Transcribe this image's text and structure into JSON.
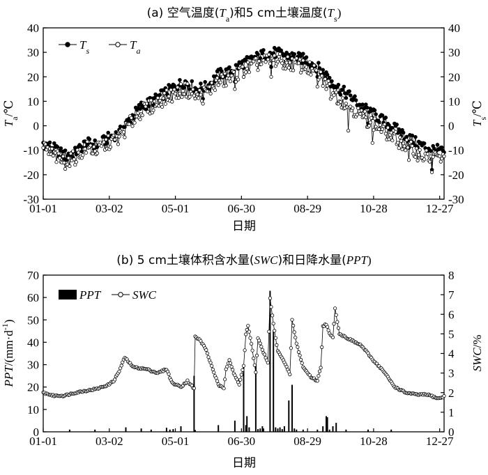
{
  "chart_data": [
    {
      "type": "line",
      "title": "(a)  空气温度(Ta)和5 cm土壤温度(Ts)",
      "title_parts": [
        "(a)  空气温度(",
        "T",
        "a",
        ")和5 cm土壤温度(",
        "T",
        "s",
        ")"
      ],
      "xlabel": "日期",
      "ylabel_left": "Ta/℃",
      "ylabel_left_parts": [
        "T",
        "a",
        "/℃"
      ],
      "ylabel_right": "Ts/℃",
      "ylabel_right_parts": [
        "T",
        "s",
        "/℃"
      ],
      "xlim": [
        1,
        365
      ],
      "ylim": [
        -30,
        40
      ],
      "yticks": [
        -30,
        -20,
        -10,
        0,
        10,
        20,
        30,
        40
      ],
      "xticks": [
        {
          "day": 1,
          "label": "01-01"
        },
        {
          "day": 61,
          "label": "03-02"
        },
        {
          "day": 121,
          "label": "05-01"
        },
        {
          "day": 181,
          "label": "06-30"
        },
        {
          "day": 241,
          "label": "08-29"
        },
        {
          "day": 301,
          "label": "10-28"
        },
        {
          "day": 361,
          "label": "12-27"
        }
      ],
      "legend": {
        "position": "top-left",
        "entries": [
          {
            "key": "Ts",
            "main": "T",
            "sub": "s"
          },
          {
            "key": "Ta",
            "main": "T",
            "sub": "a"
          }
        ]
      },
      "series": [
        {
          "key": "Ts",
          "name": "Ts",
          "marker": "filled-circle",
          "color": "#000000",
          "anchors": [
            [
              1,
              -7
            ],
            [
              10,
              -9
            ],
            [
              20,
              -12
            ],
            [
              30,
              -11
            ],
            [
              40,
              -7
            ],
            [
              50,
              -8
            ],
            [
              60,
              -5
            ],
            [
              70,
              -3
            ],
            [
              80,
              3
            ],
            [
              90,
              8
            ],
            [
              100,
              10
            ],
            [
              110,
              13
            ],
            [
              120,
              16
            ],
            [
              130,
              18
            ],
            [
              140,
              15
            ],
            [
              150,
              16
            ],
            [
              160,
              21
            ],
            [
              170,
              22
            ],
            [
              180,
              25
            ],
            [
              190,
              27
            ],
            [
              200,
              29
            ],
            [
              210,
              30
            ],
            [
              220,
              29
            ],
            [
              230,
              28
            ],
            [
              240,
              27
            ],
            [
              250,
              24
            ],
            [
              260,
              20
            ],
            [
              270,
              15
            ],
            [
              280,
              12
            ],
            [
              290,
              8
            ],
            [
              300,
              5
            ],
            [
              310,
              2
            ],
            [
              320,
              -1
            ],
            [
              330,
              -4
            ],
            [
              340,
              -7
            ],
            [
              350,
              -9
            ],
            [
              360,
              -10
            ],
            [
              365,
              -11
            ]
          ],
          "dips": [
            [
              22,
              -14
            ],
            [
              37,
              -9
            ],
            [
              146,
              11
            ],
            [
              175,
              18
            ],
            [
              208,
              24
            ],
            [
              250,
              20
            ],
            [
              262,
              16
            ],
            [
              296,
              1
            ],
            [
              333,
              -9
            ],
            [
              354,
              -18
            ]
          ]
        },
        {
          "key": "Ta",
          "name": "Ta",
          "marker": "open-circle",
          "color": "#000000",
          "anchors": [
            [
              1,
              -9
            ],
            [
              10,
              -12
            ],
            [
              20,
              -15
            ],
            [
              30,
              -13
            ],
            [
              40,
              -9
            ],
            [
              50,
              -10
            ],
            [
              60,
              -7
            ],
            [
              70,
              -5
            ],
            [
              80,
              1
            ],
            [
              90,
              6
            ],
            [
              100,
              8
            ],
            [
              110,
              11
            ],
            [
              120,
              13
            ],
            [
              130,
              15
            ],
            [
              140,
              12
            ],
            [
              150,
              14
            ],
            [
              160,
              18
            ],
            [
              170,
              19
            ],
            [
              180,
              22
            ],
            [
              190,
              24
            ],
            [
              200,
              26
            ],
            [
              210,
              27
            ],
            [
              220,
              26
            ],
            [
              230,
              25
            ],
            [
              240,
              24
            ],
            [
              250,
              21
            ],
            [
              260,
              16
            ],
            [
              270,
              11
            ],
            [
              280,
              8
            ],
            [
              290,
              4
            ],
            [
              300,
              1
            ],
            [
              310,
              -2
            ],
            [
              320,
              -5
            ],
            [
              330,
              -8
            ],
            [
              340,
              -11
            ],
            [
              350,
              -13
            ],
            [
              360,
              -13
            ],
            [
              365,
              -14
            ]
          ],
          "dips": [
            [
              22,
              -16
            ],
            [
              37,
              -12
            ],
            [
              146,
              9
            ],
            [
              175,
              15
            ],
            [
              208,
              20
            ],
            [
              250,
              16
            ],
            [
              262,
              11
            ],
            [
              278,
              -2
            ],
            [
              300,
              -7
            ],
            [
              318,
              -6
            ],
            [
              333,
              -14
            ],
            [
              354,
              -19
            ]
          ]
        }
      ]
    },
    {
      "type": "bar+line",
      "title": "(b)  5 cm土壤体积含水量(SWC)和日降水量(PPT)",
      "title_parts": [
        "(b)  5 cm土壤体积含水量(",
        "SWC",
        ")和日降水量(",
        "PPT",
        ")"
      ],
      "xlabel": "日期",
      "ylabel_left": "PPT/(mm·d-1)",
      "ylabel_left_parts": [
        "PPT",
        "/(mm·d",
        "-1",
        ")"
      ],
      "ylabel_right": "SWC/%",
      "ylabel_right_parts": [
        "SWC",
        "/%"
      ],
      "xlim": [
        1,
        365
      ],
      "ylim_left": [
        0,
        70
      ],
      "ylim_right": [
        0,
        8
      ],
      "yticks_left": [
        0,
        10,
        20,
        30,
        40,
        50,
        60,
        70
      ],
      "yticks_right": [
        0,
        1,
        2,
        3,
        4,
        5,
        6,
        7,
        8
      ],
      "xticks": [
        {
          "day": 1,
          "label": "01-01"
        },
        {
          "day": 61,
          "label": "03-02"
        },
        {
          "day": 121,
          "label": "05-01"
        },
        {
          "day": 181,
          "label": "06-30"
        },
        {
          "day": 241,
          "label": "08-29"
        },
        {
          "day": 301,
          "label": "10-28"
        },
        {
          "day": 361,
          "label": "12-27"
        }
      ],
      "legend": {
        "position": "top-left",
        "entries": [
          {
            "key": "PPT",
            "main": "PPT",
            "sub": ""
          },
          {
            "key": "SWC",
            "main": "SWC",
            "sub": ""
          }
        ]
      },
      "series": [
        {
          "key": "PPT",
          "name": "PPT",
          "type": "bar",
          "axis": "left",
          "color": "#000000",
          "days": [
            25,
            48,
            76,
            90,
            99,
            113,
            116,
            119,
            126,
            138,
            139,
            160,
            175,
            183,
            185,
            186,
            188,
            194,
            196,
            198,
            200,
            201,
            207,
            210,
            212,
            214,
            216,
            218,
            220,
            224,
            227,
            229,
            231,
            237,
            250,
            255,
            258,
            259,
            261,
            264,
            267,
            276,
            296,
            317
          ],
          "values": [
            1.0,
            1.0,
            2.0,
            1.5,
            1.0,
            1.8,
            1.0,
            1.2,
            2.5,
            25.0,
            0.8,
            3.0,
            5.0,
            30.0,
            3.0,
            7.0,
            2.0,
            30.0,
            1.2,
            1.5,
            2.5,
            1.5,
            63.0,
            45.0,
            2.0,
            1.5,
            2.0,
            1.2,
            2.5,
            14.0,
            21.0,
            1.5,
            1.0,
            1.0,
            1.0,
            2.5,
            7.0,
            6.5,
            1.0,
            2.5,
            4.0,
            1.0,
            1.0,
            1.0
          ]
        },
        {
          "key": "SWC",
          "name": "SWC",
          "type": "line",
          "axis": "right",
          "marker": "open-circle",
          "color": "#000000",
          "anchors": [
            [
              1,
              2.0
            ],
            [
              10,
              1.85
            ],
            [
              20,
              1.85
            ],
            [
              30,
              2.0
            ],
            [
              50,
              2.2
            ],
            [
              60,
              2.4
            ],
            [
              65,
              2.6
            ],
            [
              70,
              3.1
            ],
            [
              75,
              3.8
            ],
            [
              78,
              3.6
            ],
            [
              83,
              3.3
            ],
            [
              95,
              3.2
            ],
            [
              105,
              3.0
            ],
            [
              113,
              3.2
            ],
            [
              118,
              2.5
            ],
            [
              126,
              2.3
            ],
            [
              132,
              2.6
            ],
            [
              138,
              2.2
            ],
            [
              139,
              4.85
            ],
            [
              143,
              4.7
            ],
            [
              148,
              4.3
            ],
            [
              155,
              3.2
            ],
            [
              160,
              2.4
            ],
            [
              165,
              2.2
            ],
            [
              167,
              3.2
            ],
            [
              170,
              3.7
            ],
            [
              174,
              3.0
            ],
            [
              179,
              2.4
            ],
            [
              183,
              3.4
            ],
            [
              185,
              5.0
            ],
            [
              187,
              5.4
            ],
            [
              190,
              4.5
            ],
            [
              194,
              3.0
            ],
            [
              196,
              4.8
            ],
            [
              200,
              4.2
            ],
            [
              205,
              3.5
            ],
            [
              207,
              6.8
            ],
            [
              210,
              5.5
            ],
            [
              214,
              4.1
            ],
            [
              218,
              3.8
            ],
            [
              222,
              3.3
            ],
            [
              225,
              2.9
            ],
            [
              227,
              5.7
            ],
            [
              231,
              4.5
            ],
            [
              237,
              3.3
            ],
            [
              244,
              2.8
            ],
            [
              250,
              2.6
            ],
            [
              253,
              3.3
            ],
            [
              255,
              5.4
            ],
            [
              258,
              5.5
            ],
            [
              261,
              5.0
            ],
            [
              264,
              4.8
            ],
            [
              266,
              6.3
            ],
            [
              270,
              5.0
            ],
            [
              280,
              4.7
            ],
            [
              290,
              4.4
            ],
            [
              300,
              3.7
            ],
            [
              310,
              3.1
            ],
            [
              315,
              2.7
            ],
            [
              320,
              2.3
            ],
            [
              330,
              2.0
            ],
            [
              340,
              1.9
            ],
            [
              350,
              1.9
            ],
            [
              360,
              1.7
            ],
            [
              365,
              1.8
            ]
          ]
        }
      ]
    }
  ]
}
